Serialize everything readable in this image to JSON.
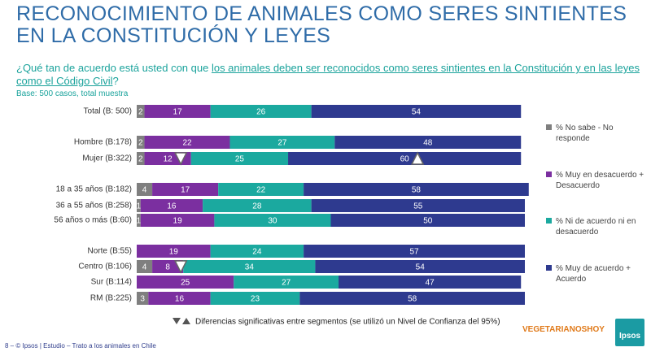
{
  "chart_data": {
    "type": "stacked-bar-horizontal",
    "title": "RECONOCIMIENTO DE ANIMALES COMO SERES SINTIENTES EN LA CONSTITUCIÓN Y LEYES",
    "question_prefix": "¿Qué tan de acuerdo está usted con que ",
    "question_highlight": "los animales deben ser reconocidos como seres sintientes en la Constitución y en las leyes como el Código Civil",
    "question_suffix": "?",
    "base": "Base: 500 casos, total muestra",
    "categories": [
      "Total (B: 500)",
      "Hombre (B:178)",
      "Mujer (B:322)",
      "18 a 35 años (B:182)",
      "36 a 55 años (B:258)",
      "56 años o más (B:60)",
      "Norte (B:55)",
      "Centro (B:106)",
      "Sur (B:114)",
      "RM (B:225)"
    ],
    "xlim": [
      0,
      100
    ],
    "series": [
      {
        "name": "% No sabe - No responde",
        "color": "#7f7f7f",
        "values": [
          2,
          2,
          2,
          4,
          1,
          1,
          null,
          4,
          null,
          3
        ]
      },
      {
        "name": "% Muy en desacuerdo + Desacuerdo",
        "color": "#7b2fa0",
        "values": [
          17,
          22,
          12,
          17,
          16,
          19,
          19,
          8,
          25,
          16
        ]
      },
      {
        "name": "% Ni de acuerdo ni en desacuerdo",
        "color": "#1ba99f",
        "values": [
          26,
          27,
          25,
          22,
          28,
          30,
          24,
          34,
          27,
          23
        ]
      },
      {
        "name": "% Muy de acuerdo + Acuerdo",
        "color": "#2e3a8f",
        "values": [
          54,
          48,
          60,
          58,
          55,
          50,
          57,
          54,
          47,
          58
        ]
      }
    ],
    "significance": [
      {
        "series": 1,
        "index": 2,
        "direction": "down"
      },
      {
        "series": 3,
        "index": 2,
        "direction": "up"
      },
      {
        "series": 1,
        "index": 7,
        "direction": "down"
      }
    ],
    "significance_note": "Diferencias significativas entre segmentos (se utilizó un Nivel de Confianza del 95%)",
    "page": "8",
    "footer": "© Ipsos | Estudio – Trato a los animales en Chile",
    "logo_left": "VEGETARIANOSHOY",
    "logo_right": "Ipsos"
  }
}
